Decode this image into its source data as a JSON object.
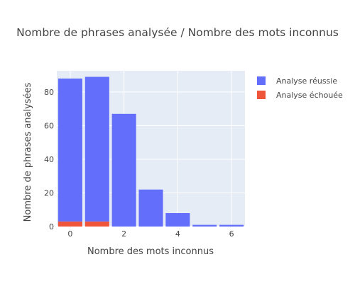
{
  "chart_data": {
    "type": "bar",
    "barmode": "stack",
    "title": "Nombre de phrases analysée / Nombre des mots inconnus",
    "xlabel": "Nombre des mots inconnus",
    "ylabel": "Nombre de phrases analysées",
    "x": [
      0,
      1,
      2,
      3,
      4,
      5,
      6
    ],
    "series": [
      {
        "name": "Analyse échouée",
        "color": "#EF553B",
        "values": [
          3,
          3,
          0,
          0,
          0,
          0,
          0
        ]
      },
      {
        "name": "Analyse réussie",
        "color": "#636EFA",
        "values": [
          85,
          86,
          67,
          22,
          8,
          1,
          1
        ]
      }
    ],
    "xlim": [
      -0.5,
      6.5
    ],
    "ylim": [
      0,
      92.6
    ],
    "xticks": [
      0,
      2,
      4,
      6
    ],
    "yticks": [
      0,
      20,
      40,
      60,
      80
    ],
    "legend_entries": [
      "Analyse réussie",
      "Analyse échouée"
    ],
    "legend_position": "right",
    "plot_background": "#E5ECF6",
    "grid": true
  }
}
